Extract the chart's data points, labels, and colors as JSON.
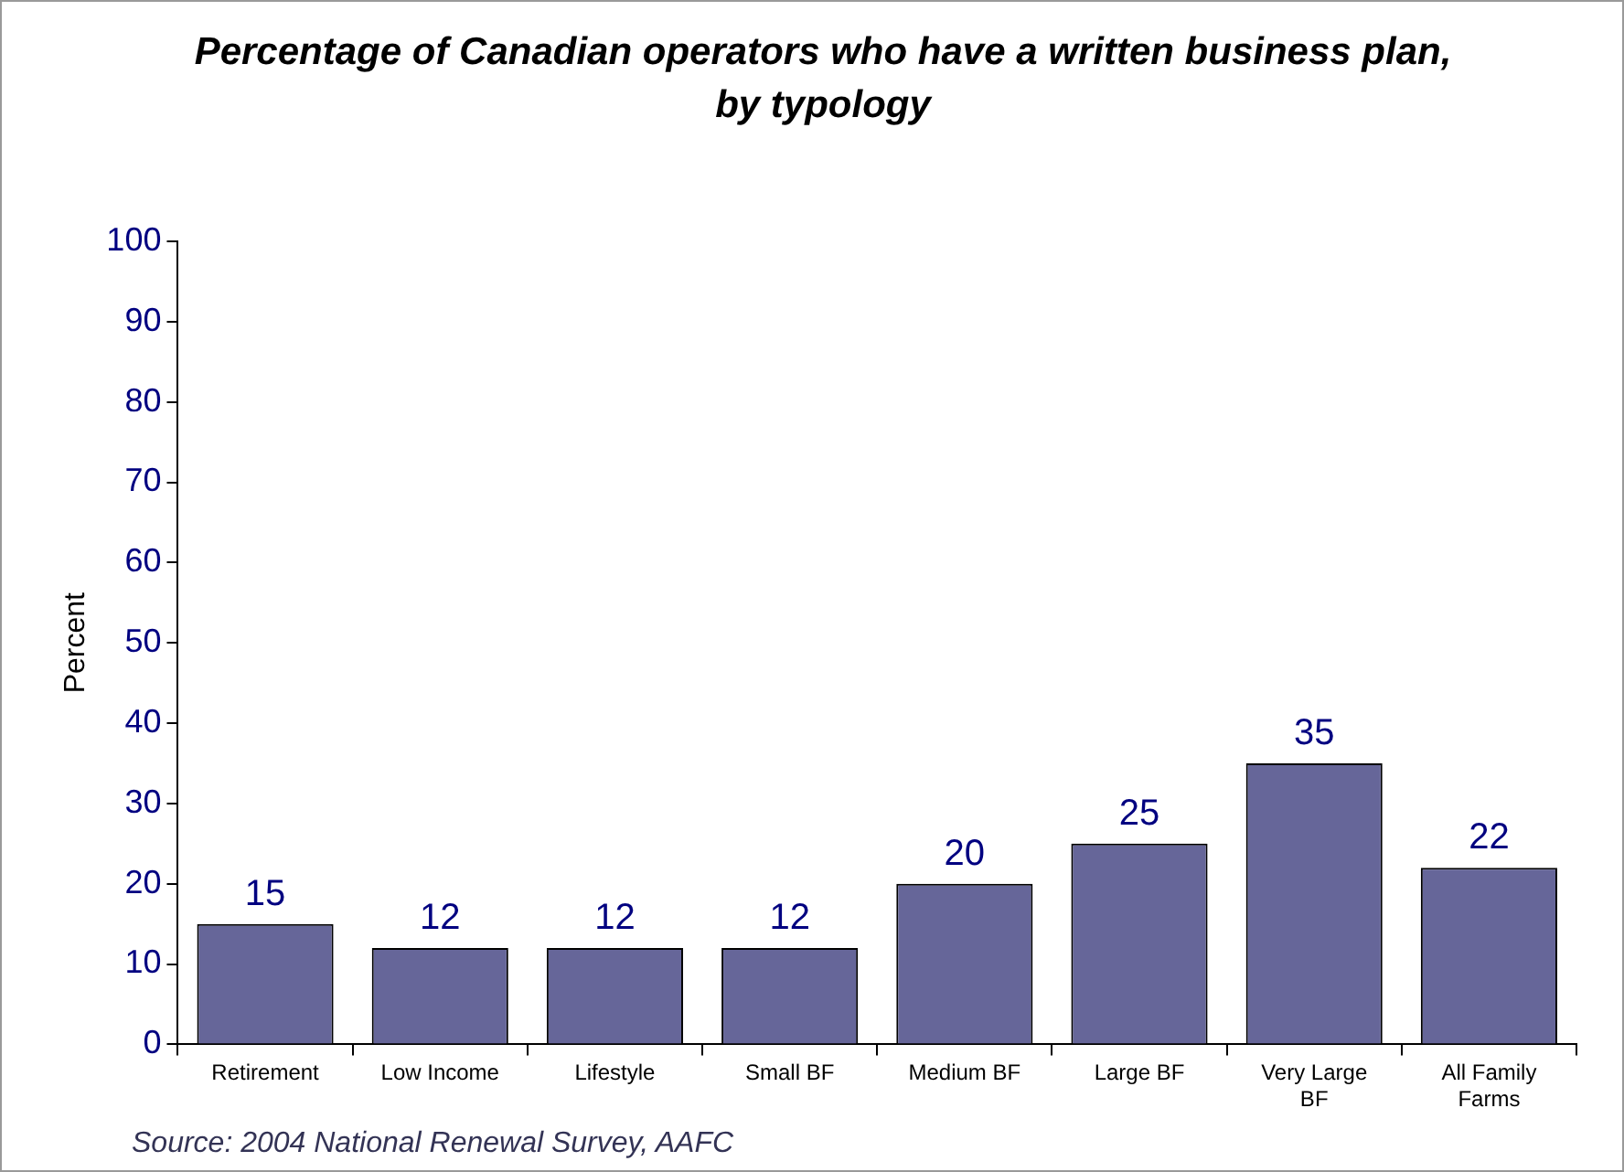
{
  "chart_data": {
    "type": "bar",
    "title": "Percentage of Canadian operators who have a written business plan, by typology",
    "ylabel": "Percent",
    "categories": [
      "Retirement",
      "Low Income",
      "Lifestyle",
      "Small BF",
      "Medium BF",
      "Large BF",
      "Very Large BF",
      "All Family Farms"
    ],
    "values": [
      15,
      12,
      12,
      12,
      20,
      25,
      35,
      22
    ],
    "color": "#666699",
    "ylim": [
      0,
      100
    ],
    "yticks": [
      0,
      10,
      20,
      30,
      40,
      50,
      60,
      70,
      80,
      90,
      100
    ],
    "grid": false,
    "legend": false,
    "data_labels": true,
    "annotations": [
      "Source: 2004 National Renewal Survey, AAFC"
    ]
  }
}
